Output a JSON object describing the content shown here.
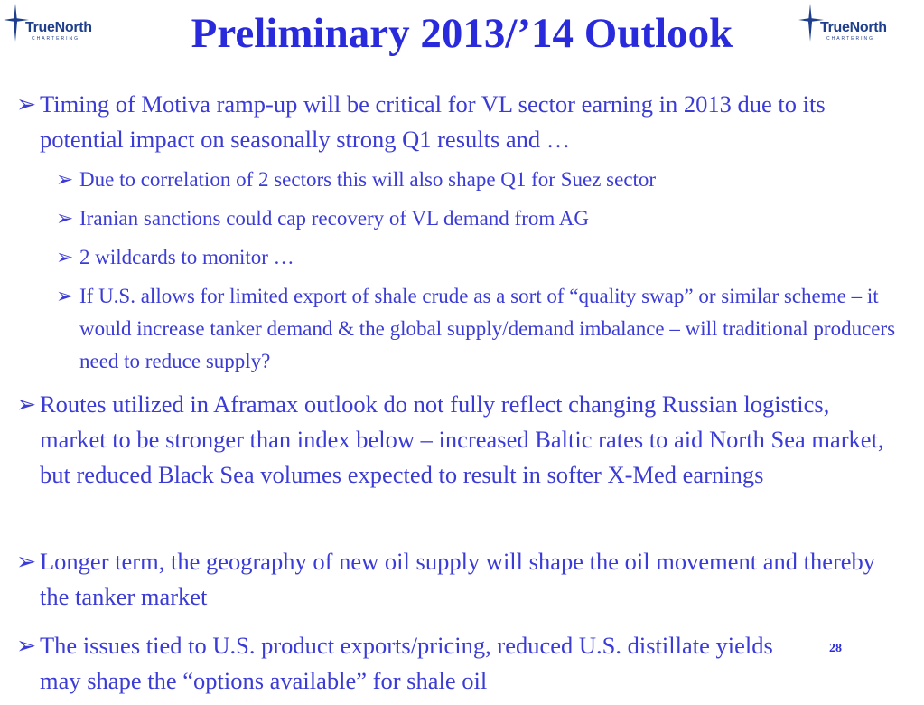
{
  "logo": {
    "word_a": "True",
    "word_b": "North",
    "sub": "CHARTERING"
  },
  "title": "Preliminary 2013/’14 Outlook",
  "bullet_glyph": "➢",
  "bullets": [
    {
      "level": 1,
      "text": "Timing of Motiva ramp-up will be critical for VL sector earning in 2013 due to its potential impact on seasonally strong Q1 results and …"
    },
    {
      "level": 2,
      "text": "Due to correlation of 2 sectors this will also shape Q1 for Suez sector"
    },
    {
      "level": 2,
      "text": "Iranian sanctions could cap recovery of VL demand from AG"
    },
    {
      "level": 2,
      "text": "2 wildcards to monitor …"
    },
    {
      "level": 2,
      "text": "If U.S. allows for limited export of shale crude as a sort of “quality swap” or similar scheme – it would increase tanker demand & the global supply/demand imbalance – will traditional producers need to reduce supply?"
    },
    {
      "level": 1,
      "text": "Routes utilized in Aframax outlook do not fully reflect changing Russian logistics, market to be stronger than index below – increased Baltic rates to aid North Sea market, but reduced Black Sea volumes expected to result in softer X-Med earnings"
    },
    {
      "level": 1,
      "text": "Longer term, the geography of new oil supply will shape the oil movement and thereby the tanker market"
    },
    {
      "level": 1,
      "text": "The issues tied to U.S. product exports/pricing, reduced U.S. distillate yields may shape the “options available” for shale oil"
    }
  ],
  "page_number": "28",
  "colors": {
    "title": "#2a2add",
    "body": "#3b3bd6",
    "logo": "#1f3f8c"
  }
}
